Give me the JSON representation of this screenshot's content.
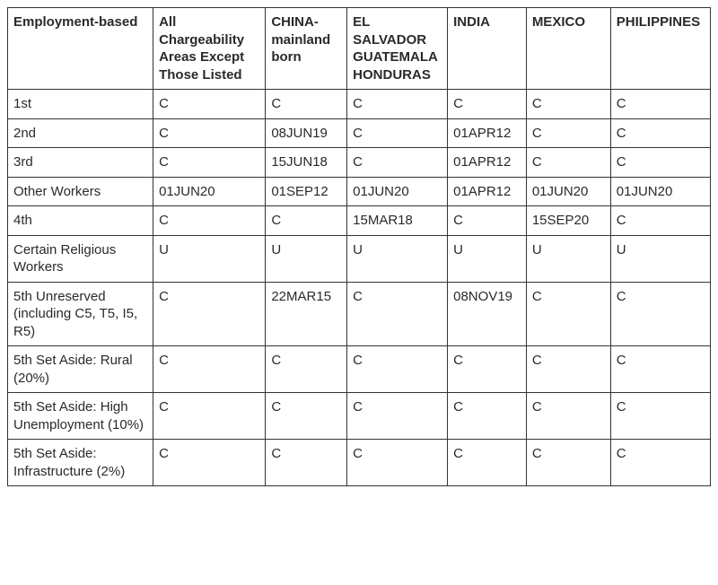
{
  "table": {
    "type": "table",
    "background_color": "#ffffff",
    "border_color": "#333333",
    "text_color": "#2a2a2a",
    "header_fontsize": 15,
    "cell_fontsize": 15,
    "header_fontweight": 700,
    "cell_fontweight": 400,
    "columns": [
      {
        "label": "Employment-based",
        "width_pct": 20.7
      },
      {
        "label": "All Chargeability Areas Except Those Listed",
        "width_pct": 16
      },
      {
        "label": "CHINA-mainland born",
        "width_pct": 11.6
      },
      {
        "label": "EL SALVADOR GUATEMALA HONDURAS",
        "width_pct": 14.3
      },
      {
        "label": "INDIA",
        "width_pct": 11.2
      },
      {
        "label": "MEXICO",
        "width_pct": 12
      },
      {
        "label": "PHILIPPINES",
        "width_pct": 14.2
      }
    ],
    "rows": [
      {
        "label": "1st",
        "cells": [
          "C",
          "C",
          "C",
          "C",
          "C",
          "C"
        ]
      },
      {
        "label": "2nd",
        "cells": [
          "C",
          "08JUN19",
          "C",
          "01APR12",
          "C",
          "C"
        ]
      },
      {
        "label": "3rd",
        "cells": [
          "C",
          "15JUN18",
          "C",
          "01APR12",
          "C",
          "C"
        ]
      },
      {
        "label": "Other Workers",
        "cells": [
          "01JUN20",
          "01SEP12",
          "01JUN20",
          "01APR12",
          "01JUN20",
          "01JUN20"
        ]
      },
      {
        "label": "4th",
        "cells": [
          "C",
          "C",
          "15MAR18",
          "C",
          "15SEP20",
          "C"
        ]
      },
      {
        "label": "Certain Religious Workers",
        "cells": [
          "U",
          "U",
          "U",
          "U",
          "U",
          "U"
        ]
      },
      {
        "label": "5th Unreserved (including C5, T5, I5, R5)",
        "cells": [
          "C",
          "22MAR15",
          "C",
          "08NOV19",
          "C",
          "C"
        ]
      },
      {
        "label": "5th Set Aside: Rural (20%)",
        "cells": [
          "C",
          "C",
          "C",
          "C",
          "C",
          "C"
        ]
      },
      {
        "label": "5th Set Aside: High Unemployment (10%)",
        "cells": [
          "C",
          "C",
          "C",
          "C",
          "C",
          "C"
        ]
      },
      {
        "label": "5th Set Aside: Infrastructure (2%)",
        "cells": [
          "C",
          "C",
          "C",
          "C",
          "C",
          "C"
        ]
      }
    ]
  }
}
